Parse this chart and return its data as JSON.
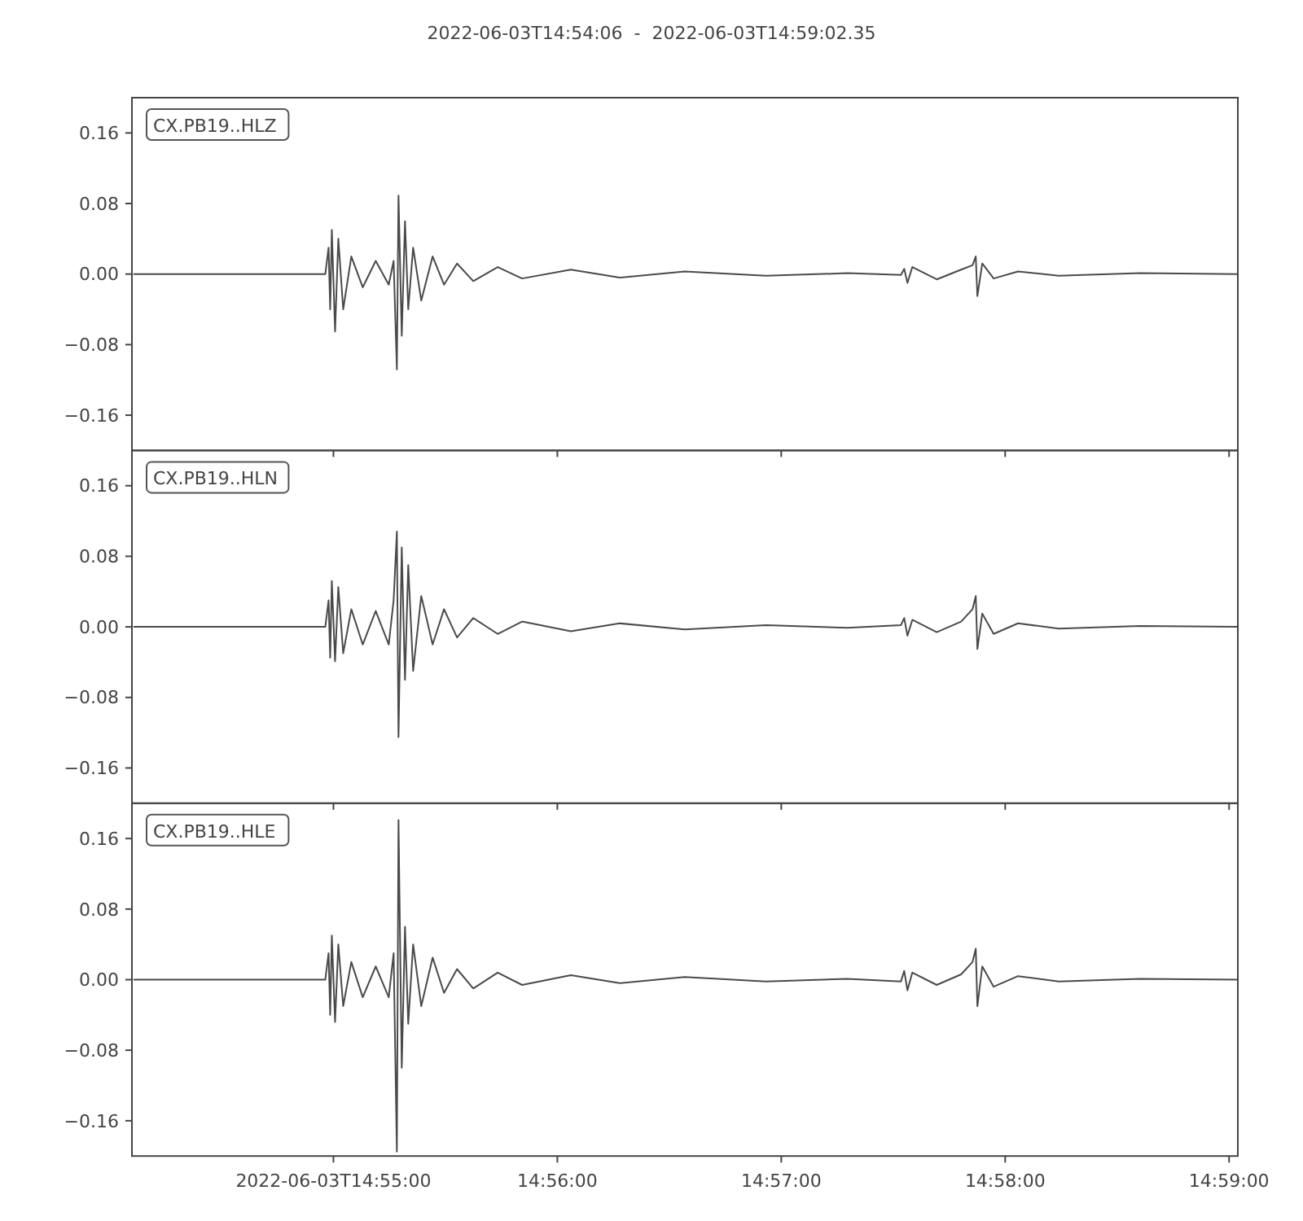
{
  "chart_data": [
    {
      "type": "line",
      "title": "2022-06-03T14:54:06  -  2022-06-03T14:59:02.35",
      "annotations": [
        "CX.PB19..HLZ"
      ],
      "tick_labels": "y",
      "grid": false,
      "marker": "none",
      "line_style": "solid",
      "xlim": [
        14.901667,
        14.983986
      ],
      "ylim": [
        -0.2,
        0.2
      ],
      "yticks": [
        {
          "value": -0.16,
          "label": "−0.16"
        },
        {
          "value": -0.08,
          "label": "−0.08"
        },
        {
          "value": 0,
          "label": "0.00"
        },
        {
          "value": 0.08,
          "label": "0.08"
        },
        {
          "value": 0.16,
          "label": "0.16"
        }
      ],
      "xticks": [
        {
          "value": 14.916667,
          "label": null
        },
        {
          "value": 14.933333,
          "label": null
        },
        {
          "value": 14.95,
          "label": null
        },
        {
          "value": 14.966667,
          "label": null
        },
        {
          "value": 14.983333,
          "label": null
        }
      ],
      "x": [
        14.90178,
        14.916062,
        14.916304,
        14.916425,
        14.916546,
        14.916788,
        14.91703,
        14.917393,
        14.917998,
        14.918846,
        14.919814,
        14.920782,
        14.921146,
        14.921388,
        14.921509,
        14.921751,
        14.921993,
        14.922235,
        14.922598,
        14.923203,
        14.92405,
        14.924898,
        14.925866,
        14.927076,
        14.928892,
        14.930708,
        14.934339,
        14.93797,
        14.942812,
        14.948864,
        14.954916,
        14.95891,
        14.959152,
        14.959394,
        14.959757,
        14.961573,
        14.963388,
        14.964236,
        14.964478,
        14.964599,
        14.964962,
        14.965809,
        14.967625,
        14.970651,
        14.976703,
        14.983965
      ],
      "series": [
        {
          "color": "#4a4a4a",
          "values": [
            0,
            0,
            0.03,
            -0.04,
            0.05,
            -0.065,
            0.04,
            -0.04,
            0.02,
            -0.015,
            0.015,
            -0.012,
            0.015,
            -0.108,
            0.089,
            -0.07,
            0.06,
            -0.04,
            0.03,
            -0.03,
            0.02,
            -0.012,
            0.012,
            -0.008,
            0.008,
            -0.005,
            0.005,
            -0.004,
            0.003,
            -0.002,
            0.001,
            -0.001,
            0.006,
            -0.01,
            0.008,
            -0.006,
            0.005,
            0.01,
            0.02,
            -0.025,
            0.012,
            -0.005,
            0.003,
            -0.002,
            0.001,
            0
          ]
        }
      ]
    },
    {
      "type": "line",
      "annotations": [
        "CX.PB19..HLN"
      ],
      "tick_labels": "y",
      "grid": false,
      "marker": "none",
      "line_style": "solid",
      "xlim": [
        14.901667,
        14.983986
      ],
      "ylim": [
        -0.2,
        0.2
      ],
      "yticks": [
        {
          "value": -0.16,
          "label": "−0.16"
        },
        {
          "value": -0.08,
          "label": "−0.08"
        },
        {
          "value": 0,
          "label": "0.00"
        },
        {
          "value": 0.08,
          "label": "0.08"
        },
        {
          "value": 0.16,
          "label": "0.16"
        }
      ],
      "xticks": [
        {
          "value": 14.916667,
          "label": null
        },
        {
          "value": 14.933333,
          "label": null
        },
        {
          "value": 14.95,
          "label": null
        },
        {
          "value": 14.966667,
          "label": null
        },
        {
          "value": 14.983333,
          "label": null
        }
      ],
      "x": [
        14.90178,
        14.916062,
        14.916304,
        14.916425,
        14.916546,
        14.916788,
        14.91703,
        14.917393,
        14.917998,
        14.918846,
        14.919814,
        14.920782,
        14.921146,
        14.921388,
        14.921509,
        14.921751,
        14.921993,
        14.922235,
        14.922598,
        14.923203,
        14.92405,
        14.924898,
        14.925866,
        14.927076,
        14.928892,
        14.930708,
        14.934339,
        14.93797,
        14.942812,
        14.948864,
        14.954916,
        14.95891,
        14.959152,
        14.959394,
        14.959757,
        14.961573,
        14.963388,
        14.964236,
        14.964478,
        14.964599,
        14.964962,
        14.965809,
        14.967625,
        14.970651,
        14.976703,
        14.983965
      ],
      "series": [
        {
          "color": "#4a4a4a",
          "values": [
            0,
            0,
            0.03,
            -0.035,
            0.052,
            -0.039,
            0.045,
            -0.03,
            0.02,
            -0.02,
            0.018,
            -0.02,
            0.03,
            0.108,
            -0.125,
            0.09,
            -0.06,
            0.07,
            -0.05,
            0.035,
            -0.02,
            0.02,
            -0.012,
            0.01,
            -0.008,
            0.006,
            -0.005,
            0.004,
            -0.003,
            0.002,
            -0.001,
            0.002,
            0.01,
            -0.01,
            0.008,
            -0.006,
            0.006,
            0.02,
            0.035,
            -0.025,
            0.015,
            -0.008,
            0.004,
            -0.002,
            0.001,
            0
          ]
        }
      ]
    },
    {
      "type": "line",
      "annotations": [
        "CX.PB19..HLE"
      ],
      "grid": false,
      "marker": "none",
      "line_style": "solid",
      "xlim": [
        14.901667,
        14.983986
      ],
      "ylim": [
        -0.2,
        0.2
      ],
      "yticks": [
        {
          "value": -0.16,
          "label": "−0.16"
        },
        {
          "value": -0.08,
          "label": "−0.08"
        },
        {
          "value": 0,
          "label": "0.00"
        },
        {
          "value": 0.08,
          "label": "0.08"
        },
        {
          "value": 0.16,
          "label": "0.16"
        }
      ],
      "xticks": [
        {
          "value": 14.916667,
          "label": "2022-06-03T14:55:00"
        },
        {
          "value": 14.933333,
          "label": "14:56:00"
        },
        {
          "value": 14.95,
          "label": "14:57:00"
        },
        {
          "value": 14.966667,
          "label": "14:58:00"
        },
        {
          "value": 14.983333,
          "label": "14:59:00"
        }
      ],
      "x": [
        14.90178,
        14.916062,
        14.916304,
        14.916425,
        14.916546,
        14.916788,
        14.91703,
        14.917393,
        14.917998,
        14.918846,
        14.919814,
        14.920782,
        14.921146,
        14.921388,
        14.921509,
        14.921751,
        14.921993,
        14.922235,
        14.922598,
        14.923203,
        14.92405,
        14.924898,
        14.925866,
        14.927076,
        14.928892,
        14.930708,
        14.934339,
        14.93797,
        14.942812,
        14.948864,
        14.954916,
        14.95891,
        14.959152,
        14.959394,
        14.959757,
        14.961573,
        14.963388,
        14.964236,
        14.964478,
        14.964599,
        14.964962,
        14.965809,
        14.967625,
        14.970651,
        14.976703,
        14.983965
      ],
      "series": [
        {
          "color": "#4a4a4a",
          "values": [
            0,
            0,
            0.03,
            -0.04,
            0.05,
            -0.048,
            0.04,
            -0.03,
            0.02,
            -0.02,
            0.015,
            -0.02,
            0.03,
            -0.195,
            0.181,
            -0.1,
            0.06,
            -0.05,
            0.04,
            -0.03,
            0.025,
            -0.015,
            0.012,
            -0.01,
            0.008,
            -0.006,
            0.005,
            -0.004,
            0.003,
            -0.002,
            0.001,
            -0.002,
            0.01,
            -0.012,
            0.008,
            -0.006,
            0.006,
            0.02,
            0.035,
            -0.03,
            0.015,
            -0.008,
            0.004,
            -0.002,
            0.001,
            0
          ]
        }
      ]
    }
  ]
}
